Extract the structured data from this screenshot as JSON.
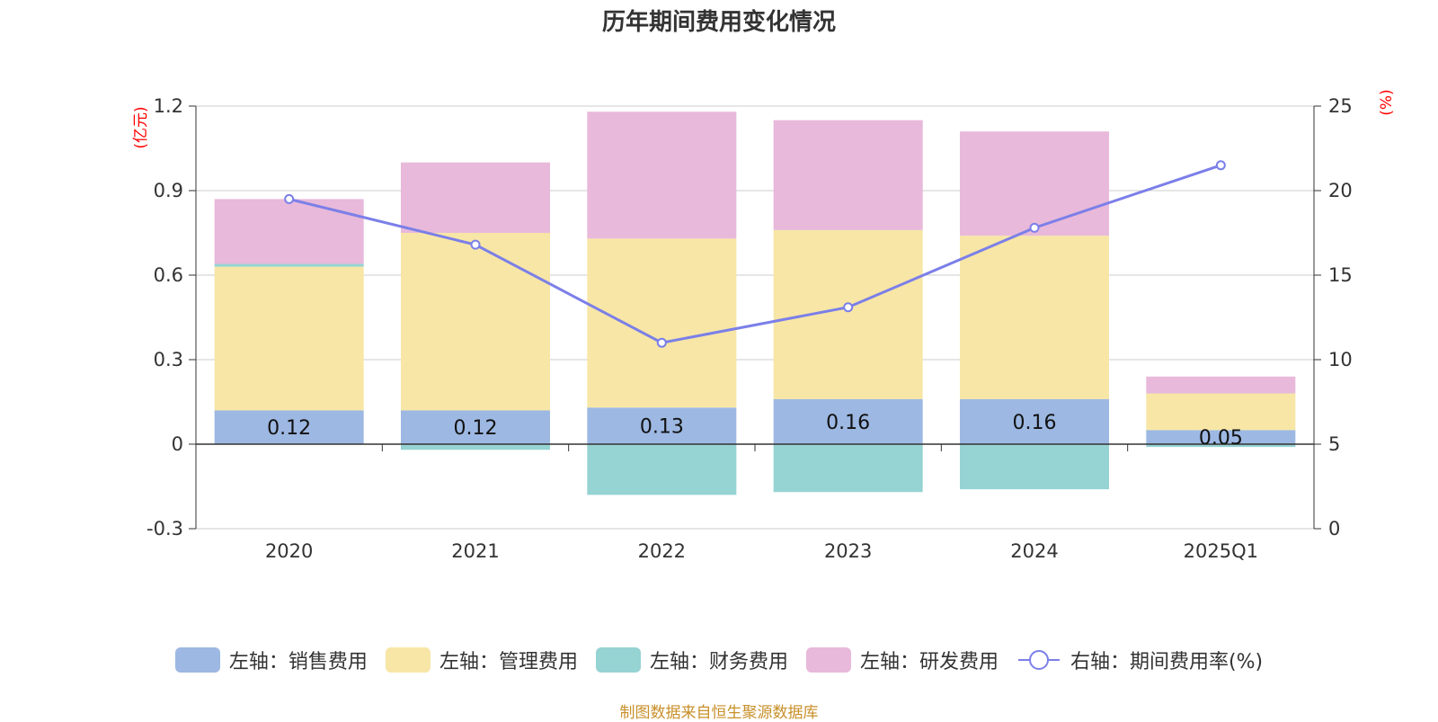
{
  "title": "历年期间费用变化情况",
  "source": "制图数据来自恒生聚源数据库",
  "chart_data": {
    "type": "bar",
    "stacked": true,
    "title": "历年期间费用变化情况",
    "categories": [
      "2020",
      "2021",
      "2022",
      "2023",
      "2024",
      "2025Q1"
    ],
    "left_axis": {
      "unit": "(亿元)",
      "ylim": [
        -0.3,
        1.2
      ],
      "ticks": [
        "-0.3",
        "0",
        "0.3",
        "0.6",
        "0.9",
        "1.2"
      ],
      "tick_values": [
        -0.3,
        0,
        0.3,
        0.6,
        0.9,
        1.2
      ]
    },
    "right_axis": {
      "unit": "(%)",
      "ylim": [
        0,
        25
      ],
      "ticks": [
        "0",
        "5",
        "10",
        "15",
        "20",
        "25"
      ],
      "tick_values": [
        0,
        5,
        10,
        15,
        20,
        25
      ]
    },
    "grid": true,
    "legend_position": "bottom",
    "series": [
      {
        "name": "左轴：销售费用",
        "type": "bar",
        "color": "#9db8e2",
        "values": [
          0.12,
          0.12,
          0.13,
          0.16,
          0.16,
          0.05
        ],
        "labels": [
          "0.12",
          "0.12",
          "0.13",
          "0.16",
          "0.16",
          "0.05"
        ]
      },
      {
        "name": "左轴：管理费用",
        "type": "bar",
        "color": "#f7e6a6",
        "values": [
          0.51,
          0.63,
          0.6,
          0.6,
          0.58,
          0.13
        ],
        "labels": []
      },
      {
        "name": "左轴：财务费用",
        "type": "bar",
        "color": "#96d3d3",
        "values": [
          0.01,
          -0.02,
          -0.18,
          -0.17,
          -0.16,
          -0.01
        ],
        "labels": []
      },
      {
        "name": "左轴：研发费用",
        "type": "bar",
        "color": "#e8b9da",
        "values": [
          0.23,
          0.25,
          0.45,
          0.39,
          0.37,
          0.06
        ],
        "labels": []
      },
      {
        "name": "右轴：期间费用率(%)",
        "type": "line",
        "axis": "right",
        "color": "#7b7fe8",
        "values": [
          19.5,
          16.8,
          11.0,
          13.1,
          17.8,
          21.5
        ]
      }
    ]
  }
}
